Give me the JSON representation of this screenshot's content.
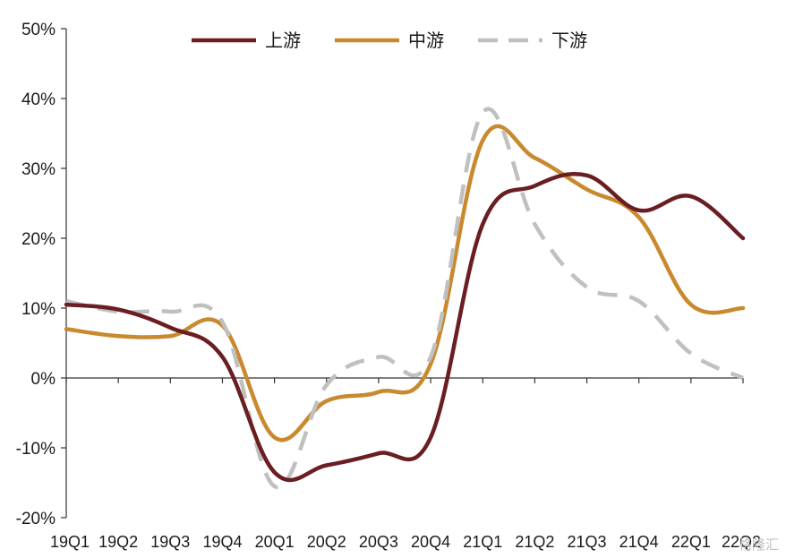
{
  "chart_data": {
    "type": "line",
    "categories": [
      "19Q1",
      "19Q2",
      "19Q3",
      "19Q4",
      "20Q1",
      "20Q2",
      "20Q3",
      "20Q4",
      "21Q1",
      "21Q2",
      "21Q3",
      "21Q4",
      "22Q1",
      "22Q2"
    ],
    "ylim": [
      -20,
      50
    ],
    "yticks": [
      -20,
      -10,
      0,
      10,
      20,
      30,
      40,
      50
    ],
    "ytick_labels": [
      "-20%",
      "-10%",
      "0%",
      "10%",
      "20%",
      "30%",
      "40%",
      "50%"
    ],
    "grid": false,
    "legend_position": "top",
    "series": [
      {
        "name": "上游",
        "color": "#6b1e22",
        "dash": "solid",
        "values": [
          10.5,
          9.8,
          7.2,
          3.0,
          -13.5,
          -12.5,
          -10.8,
          -8.5,
          22.0,
          27.5,
          29.0,
          24.0,
          26.0,
          20.0
        ]
      },
      {
        "name": "中游",
        "color": "#c9892e",
        "dash": "solid",
        "values": [
          7.0,
          6.0,
          6.0,
          7.5,
          -8.5,
          -3.3,
          -2.0,
          2.0,
          34.0,
          31.5,
          27.0,
          23.0,
          10.5,
          10.0
        ]
      },
      {
        "name": "下游",
        "color": "#c0c0c0",
        "dash": "dashed",
        "values": [
          11.0,
          9.5,
          9.5,
          8.0,
          -15.5,
          -1.0,
          3.0,
          3.0,
          38.0,
          22.0,
          13.0,
          11.0,
          3.5,
          0.0
        ]
      }
    ]
  },
  "watermark": "格隆汇"
}
